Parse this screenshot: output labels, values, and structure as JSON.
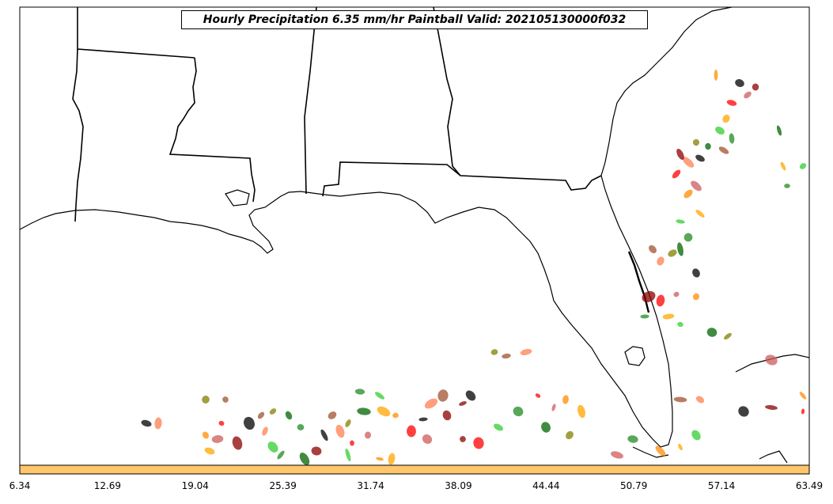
{
  "title": "Hourly Precipitation 6.35 mm/hr Paintball Valid: 202105130000f032",
  "colorbar": {
    "fill_color": "#ffc66b",
    "tick_labels": [
      "6.34",
      "12.69",
      "19.04",
      "25.39",
      "31.74",
      "38.09",
      "44.44",
      "50.79",
      "57.14",
      "63.49"
    ]
  },
  "map": {
    "region": "US Gulf Coast and Florida",
    "land_color": "#ffffff",
    "boundary_color": "#000000"
  },
  "member_colors": [
    "#000000",
    "#8b0000",
    "#ff0000",
    "#cd5c5c",
    "#ff8c00",
    "#ffa500",
    "#32cd32",
    "#228b22",
    "#006400",
    "#808000",
    "#a0522d",
    "#ff7f50"
  ]
}
